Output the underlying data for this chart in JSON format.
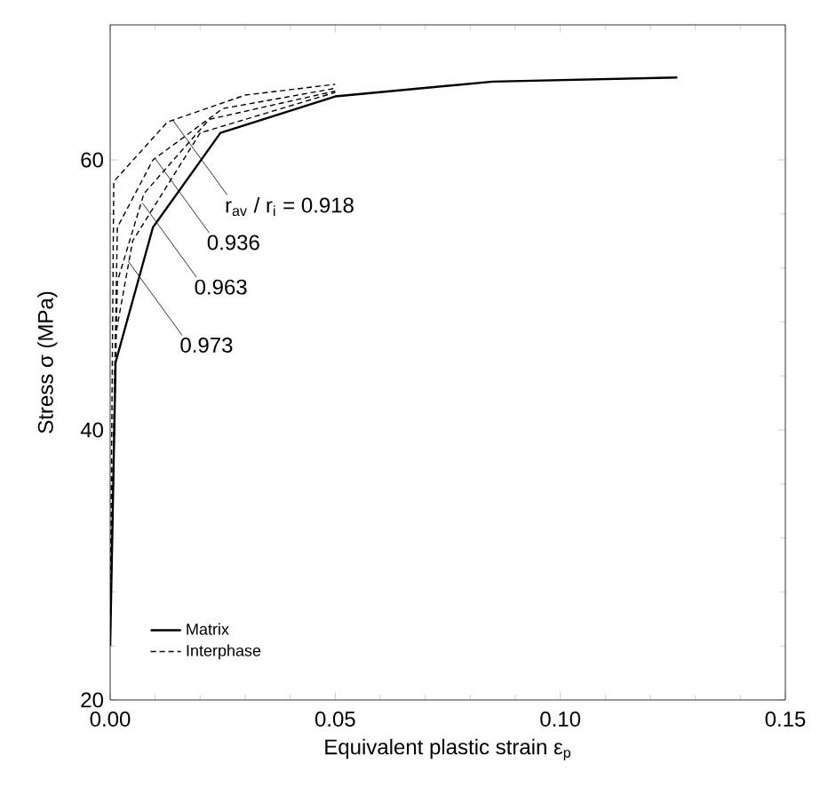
{
  "chart_data": {
    "type": "line",
    "xlabel": "Equivalent plastic strain ε$_{p}$",
    "ylabel": "Stress  σ  (MPa)",
    "xlim": [
      0,
      0.15
    ],
    "ylim": [
      20,
      70
    ],
    "xticks": [
      {
        "value": 0,
        "label": "0.00"
      },
      0.05,
      {
        "value": 0.1,
        "label": "0.10"
      },
      0.15
    ],
    "yticks": [
      20,
      40,
      60
    ],
    "series": [
      {
        "name": "Matrix",
        "color": "#000000",
        "line_style": "solid",
        "x": [
          0,
          0.0012,
          0.0095,
          0.0245,
          0.05,
          0.085,
          0.126
        ],
        "values": [
          24,
          45,
          55,
          62,
          64.7,
          65.8,
          66.1
        ]
      },
      {
        "name": "Interphase",
        "color": "#000000",
        "line_style": "dashed",
        "x": [
          0,
          0.0008,
          0.0127,
          0.03,
          0.05
        ],
        "values": [
          25,
          58.4,
          62.8,
          64.8,
          65.6
        ]
      },
      {
        "color": "#000000",
        "line_style": "dashed",
        "x": [
          0,
          0.0016,
          0.0095,
          0.025,
          0.05
        ],
        "values": [
          25,
          55,
          60,
          63.8,
          65.3
        ]
      },
      {
        "color": "#000000",
        "line_style": "dashed",
        "x": [
          0,
          0.0016,
          0.0075,
          0.022,
          0.05
        ],
        "values": [
          25,
          51,
          57.5,
          63,
          65.1
        ]
      },
      {
        "color": "#000000",
        "line_style": "dashed",
        "x": [
          0,
          0.0012,
          0.005,
          0.02,
          0.05
        ],
        "values": [
          25,
          47,
          54,
          62,
          65
        ]
      }
    ],
    "annotations": [
      {
        "text": "r$_{av}$ / r$_{i}$ = 0.918",
        "x": 0.014,
        "y": 62.9
      },
      {
        "text": "0.936",
        "x": 0.01,
        "y": 60.1
      },
      {
        "text": "0.963",
        "x": 0.0072,
        "y": 56.8
      },
      {
        "text": "0.973",
        "x": 0.004,
        "y": 52.5
      }
    ],
    "legend": "bottom left",
    "grid": false,
    "marker": "none"
  }
}
